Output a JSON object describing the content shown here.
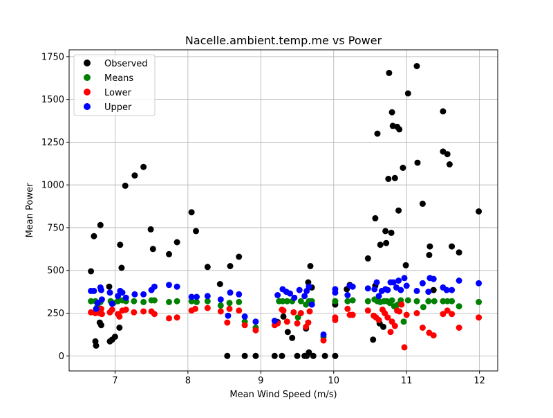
{
  "chart_data": {
    "type": "scatter",
    "title": "Nacelle.ambient.temp.me vs Power",
    "xlabel": "Mean Wind Speed (m/s)",
    "ylabel": "Mean Power",
    "xlim": [
      6.37,
      12.25
    ],
    "ylim": [
      -88,
      1790
    ],
    "x_ticks": [
      7,
      8,
      9,
      10,
      11,
      12
    ],
    "y_ticks": [
      0,
      250,
      500,
      750,
      1000,
      1250,
      1500,
      1750
    ],
    "grid": true,
    "legend_position": "upper left",
    "series": [
      {
        "name": "Observed",
        "color": "#000000",
        "points": [
          [
            6.67,
            495
          ],
          [
            6.71,
            700
          ],
          [
            6.73,
            85
          ],
          [
            6.74,
            60
          ],
          [
            6.79,
            195
          ],
          [
            6.8,
            765
          ],
          [
            6.81,
            180
          ],
          [
            6.92,
            405
          ],
          [
            6.93,
            85
          ],
          [
            6.96,
            95
          ],
          [
            7.0,
            112
          ],
          [
            7.06,
            165
          ],
          [
            7.07,
            650
          ],
          [
            7.09,
            515
          ],
          [
            7.14,
            995
          ],
          [
            7.27,
            1055
          ],
          [
            7.39,
            1105
          ],
          [
            7.49,
            740
          ],
          [
            7.52,
            625
          ],
          [
            7.74,
            595
          ],
          [
            7.85,
            665
          ],
          [
            8.05,
            840
          ],
          [
            8.11,
            730
          ],
          [
            8.27,
            520
          ],
          [
            8.44,
            420
          ],
          [
            8.54,
            0
          ],
          [
            8.58,
            525
          ],
          [
            8.7,
            580
          ],
          [
            8.78,
            0
          ],
          [
            8.93,
            0
          ],
          [
            9.19,
            0
          ],
          [
            9.23,
            198
          ],
          [
            9.29,
            0
          ],
          [
            9.31,
            230
          ],
          [
            9.37,
            140
          ],
          [
            9.43,
            105
          ],
          [
            9.5,
            0
          ],
          [
            9.6,
            0
          ],
          [
            9.62,
            160
          ],
          [
            9.63,
            0
          ],
          [
            9.65,
            430
          ],
          [
            9.66,
            20
          ],
          [
            9.68,
            525
          ],
          [
            9.7,
            400
          ],
          [
            9.72,
            0
          ],
          [
            9.88,
            0
          ],
          [
            10.02,
            0
          ],
          [
            10.02,
            300
          ],
          [
            10.18,
            390
          ],
          [
            10.22,
            415
          ],
          [
            10.47,
            570
          ],
          [
            10.54,
            95
          ],
          [
            10.57,
            410
          ],
          [
            10.57,
            805
          ],
          [
            10.6,
            1300
          ],
          [
            10.63,
            190
          ],
          [
            10.64,
            650
          ],
          [
            10.68,
            170
          ],
          [
            10.71,
            730
          ],
          [
            10.72,
            660
          ],
          [
            10.75,
            1035
          ],
          [
            10.76,
            1655
          ],
          [
            10.79,
            720
          ],
          [
            10.8,
            1425
          ],
          [
            10.81,
            1345
          ],
          [
            10.84,
            1040
          ],
          [
            10.87,
            1340
          ],
          [
            10.89,
            850
          ],
          [
            10.9,
            1325
          ],
          [
            10.95,
            1100
          ],
          [
            10.99,
            530
          ],
          [
            11.02,
            1535
          ],
          [
            11.14,
            1695
          ],
          [
            11.15,
            1130
          ],
          [
            11.22,
            890
          ],
          [
            11.31,
            590
          ],
          [
            11.32,
            640
          ],
          [
            11.37,
            385
          ],
          [
            11.5,
            1430
          ],
          [
            11.5,
            1195
          ],
          [
            11.56,
            1180
          ],
          [
            11.59,
            1120
          ],
          [
            11.62,
            640
          ],
          [
            11.72,
            605
          ],
          [
            11.99,
            845
          ]
        ]
      },
      {
        "name": "Means",
        "color": "#008000",
        "points": [
          [
            6.67,
            320
          ],
          [
            6.73,
            320
          ],
          [
            6.76,
            290
          ],
          [
            6.8,
            315
          ],
          [
            6.94,
            320
          ],
          [
            6.98,
            310
          ],
          [
            7.04,
            320
          ],
          [
            7.1,
            325
          ],
          [
            7.15,
            320
          ],
          [
            7.26,
            320
          ],
          [
            7.39,
            315
          ],
          [
            7.5,
            325
          ],
          [
            7.54,
            325
          ],
          [
            7.74,
            315
          ],
          [
            7.85,
            320
          ],
          [
            8.05,
            320
          ],
          [
            8.12,
            315
          ],
          [
            8.27,
            320
          ],
          [
            8.45,
            295
          ],
          [
            8.57,
            310
          ],
          [
            8.7,
            315
          ],
          [
            8.78,
            200
          ],
          [
            8.93,
            165
          ],
          [
            9.2,
            190
          ],
          [
            9.25,
            320
          ],
          [
            9.3,
            320
          ],
          [
            9.36,
            320
          ],
          [
            9.43,
            320
          ],
          [
            9.51,
            225
          ],
          [
            9.55,
            320
          ],
          [
            9.62,
            300
          ],
          [
            9.66,
            320
          ],
          [
            9.7,
            320
          ],
          [
            9.86,
            110
          ],
          [
            10.02,
            320
          ],
          [
            10.02,
            320
          ],
          [
            10.19,
            320
          ],
          [
            10.26,
            325
          ],
          [
            10.47,
            320
          ],
          [
            10.56,
            330
          ],
          [
            10.6,
            320
          ],
          [
            10.64,
            315
          ],
          [
            10.69,
            320
          ],
          [
            10.73,
            320
          ],
          [
            10.77,
            310
          ],
          [
            10.8,
            325
          ],
          [
            10.83,
            290
          ],
          [
            10.88,
            300
          ],
          [
            10.92,
            325
          ],
          [
            10.96,
            200
          ],
          [
            11.02,
            325
          ],
          [
            11.14,
            320
          ],
          [
            11.23,
            285
          ],
          [
            11.3,
            320
          ],
          [
            11.38,
            320
          ],
          [
            11.5,
            320
          ],
          [
            11.56,
            320
          ],
          [
            11.62,
            320
          ],
          [
            11.72,
            290
          ],
          [
            11.99,
            315
          ]
        ]
      },
      {
        "name": "Lower",
        "color": "#ff0000",
        "points": [
          [
            6.67,
            255
          ],
          [
            6.73,
            250
          ],
          [
            6.76,
            255
          ],
          [
            6.79,
            250
          ],
          [
            6.81,
            275
          ],
          [
            6.82,
            245
          ],
          [
            6.93,
            255
          ],
          [
            6.96,
            270
          ],
          [
            7.04,
            245
          ],
          [
            7.06,
            230
          ],
          [
            7.1,
            265
          ],
          [
            7.15,
            270
          ],
          [
            7.26,
            255
          ],
          [
            7.39,
            260
          ],
          [
            7.5,
            260
          ],
          [
            7.54,
            245
          ],
          [
            7.74,
            220
          ],
          [
            7.85,
            225
          ],
          [
            8.05,
            265
          ],
          [
            8.1,
            275
          ],
          [
            8.27,
            280
          ],
          [
            8.45,
            260
          ],
          [
            8.54,
            195
          ],
          [
            8.57,
            275
          ],
          [
            8.7,
            265
          ],
          [
            8.78,
            180
          ],
          [
            8.93,
            150
          ],
          [
            9.19,
            180
          ],
          [
            9.23,
            190
          ],
          [
            9.29,
            270
          ],
          [
            9.31,
            265
          ],
          [
            9.36,
            200
          ],
          [
            9.45,
            255
          ],
          [
            9.5,
            190
          ],
          [
            9.55,
            250
          ],
          [
            9.62,
            170
          ],
          [
            9.65,
            195
          ],
          [
            9.67,
            260
          ],
          [
            9.86,
            90
          ],
          [
            10.02,
            210
          ],
          [
            10.02,
            225
          ],
          [
            10.19,
            275
          ],
          [
            10.22,
            240
          ],
          [
            10.26,
            240
          ],
          [
            10.47,
            265
          ],
          [
            10.55,
            235
          ],
          [
            10.58,
            225
          ],
          [
            10.62,
            210
          ],
          [
            10.67,
            270
          ],
          [
            10.7,
            250
          ],
          [
            10.74,
            225
          ],
          [
            10.78,
            140
          ],
          [
            10.8,
            200
          ],
          [
            10.84,
            175
          ],
          [
            10.87,
            265
          ],
          [
            10.9,
            260
          ],
          [
            10.93,
            300
          ],
          [
            10.97,
            50
          ],
          [
            11.0,
            240
          ],
          [
            11.14,
            250
          ],
          [
            11.22,
            165
          ],
          [
            11.31,
            135
          ],
          [
            11.37,
            120
          ],
          [
            11.5,
            245
          ],
          [
            11.56,
            265
          ],
          [
            11.62,
            245
          ],
          [
            11.72,
            165
          ],
          [
            11.99,
            225
          ]
        ]
      },
      {
        "name": "Upper",
        "color": "#0000ff",
        "points": [
          [
            6.67,
            380
          ],
          [
            6.71,
            380
          ],
          [
            6.74,
            275
          ],
          [
            6.76,
            310
          ],
          [
            6.8,
            400
          ],
          [
            6.81,
            385
          ],
          [
            6.82,
            330
          ],
          [
            6.93,
            370
          ],
          [
            6.96,
            305
          ],
          [
            7.04,
            350
          ],
          [
            7.07,
            380
          ],
          [
            7.1,
            370
          ],
          [
            7.15,
            340
          ],
          [
            7.27,
            360
          ],
          [
            7.39,
            360
          ],
          [
            7.5,
            385
          ],
          [
            7.54,
            405
          ],
          [
            7.74,
            415
          ],
          [
            7.85,
            405
          ],
          [
            8.05,
            345
          ],
          [
            8.12,
            345
          ],
          [
            8.27,
            350
          ],
          [
            8.45,
            330
          ],
          [
            8.55,
            235
          ],
          [
            8.58,
            370
          ],
          [
            8.7,
            360
          ],
          [
            8.78,
            230
          ],
          [
            8.93,
            200
          ],
          [
            9.19,
            205
          ],
          [
            9.23,
            355
          ],
          [
            9.3,
            390
          ],
          [
            9.35,
            375
          ],
          [
            9.4,
            365
          ],
          [
            9.46,
            340
          ],
          [
            9.53,
            385
          ],
          [
            9.6,
            350
          ],
          [
            9.63,
            380
          ],
          [
            9.66,
            405
          ],
          [
            9.7,
            300
          ],
          [
            9.86,
            125
          ],
          [
            10.02,
            390
          ],
          [
            10.02,
            370
          ],
          [
            10.19,
            355
          ],
          [
            10.22,
            410
          ],
          [
            10.26,
            405
          ],
          [
            10.47,
            395
          ],
          [
            10.56,
            390
          ],
          [
            10.59,
            430
          ],
          [
            10.62,
            350
          ],
          [
            10.66,
            380
          ],
          [
            10.71,
            390
          ],
          [
            10.74,
            385
          ],
          [
            10.78,
            430
          ],
          [
            10.82,
            430
          ],
          [
            10.86,
            400
          ],
          [
            10.89,
            440
          ],
          [
            10.92,
            385
          ],
          [
            10.97,
            455
          ],
          [
            11.0,
            410
          ],
          [
            11.14,
            380
          ],
          [
            11.22,
            425
          ],
          [
            11.3,
            375
          ],
          [
            11.32,
            455
          ],
          [
            11.37,
            450
          ],
          [
            11.5,
            400
          ],
          [
            11.55,
            385
          ],
          [
            11.62,
            385
          ],
          [
            11.72,
            440
          ],
          [
            11.99,
            425
          ]
        ]
      }
    ]
  }
}
